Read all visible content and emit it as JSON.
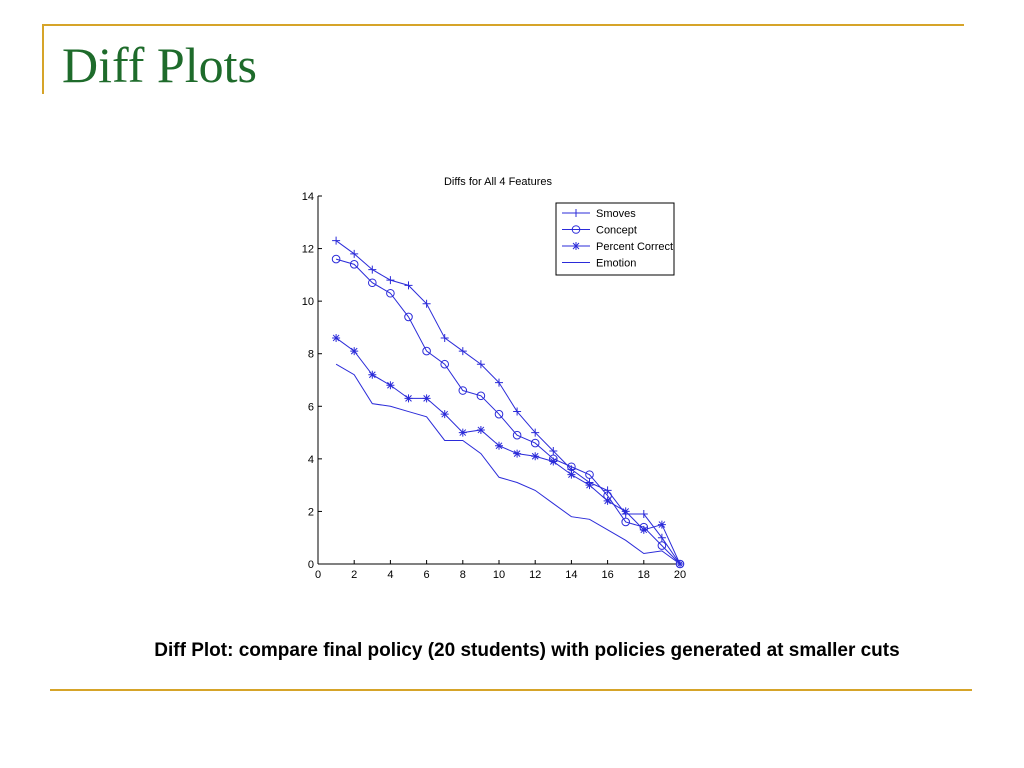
{
  "slide": {
    "title": "Diff Plots",
    "caption": "Diff Plot: compare final policy (20 students) with policies generated at smaller cuts",
    "accent_color": "#d6a429",
    "title_color": "#1e6b2b"
  },
  "chart_data": {
    "type": "line",
    "title": "Diffs for All 4 Features",
    "xlabel": "",
    "ylabel": "",
    "xlim": [
      0,
      20
    ],
    "ylim": [
      0,
      14
    ],
    "xticks": [
      0,
      2,
      4,
      6,
      8,
      10,
      12,
      14,
      16,
      18,
      20
    ],
    "yticks": [
      0,
      2,
      4,
      6,
      8,
      10,
      12,
      14
    ],
    "grid": false,
    "legend_position": "top-right",
    "line_color": "#2b2bd9",
    "x": [
      1,
      2,
      3,
      4,
      5,
      6,
      7,
      8,
      9,
      10,
      11,
      12,
      13,
      14,
      15,
      16,
      17,
      18,
      19,
      20
    ],
    "series": [
      {
        "name": "Smoves",
        "marker": "plus",
        "values": [
          12.3,
          11.8,
          11.2,
          10.8,
          10.6,
          9.9,
          8.6,
          8.1,
          7.6,
          6.9,
          5.8,
          5.0,
          4.3,
          3.6,
          3.1,
          2.8,
          1.9,
          1.9,
          1.0,
          0.0
        ]
      },
      {
        "name": "Concept",
        "marker": "circle",
        "values": [
          11.6,
          11.4,
          10.7,
          10.3,
          9.4,
          8.1,
          7.6,
          6.6,
          6.4,
          5.7,
          4.9,
          4.6,
          4.0,
          3.7,
          3.4,
          2.6,
          1.6,
          1.4,
          0.7,
          0.0
        ]
      },
      {
        "name": "Percent Correct",
        "marker": "star",
        "values": [
          8.6,
          8.1,
          7.2,
          6.8,
          6.3,
          6.3,
          5.7,
          5.0,
          5.1,
          4.5,
          4.2,
          4.1,
          3.9,
          3.4,
          3.0,
          2.4,
          2.0,
          1.3,
          1.5,
          0.0
        ]
      },
      {
        "name": "Emotion",
        "marker": "none",
        "values": [
          7.6,
          7.2,
          6.1,
          6.0,
          5.8,
          5.6,
          4.7,
          4.7,
          4.2,
          3.3,
          3.1,
          2.8,
          2.3,
          1.8,
          1.7,
          1.3,
          0.9,
          0.4,
          0.5,
          0.0
        ]
      }
    ]
  }
}
